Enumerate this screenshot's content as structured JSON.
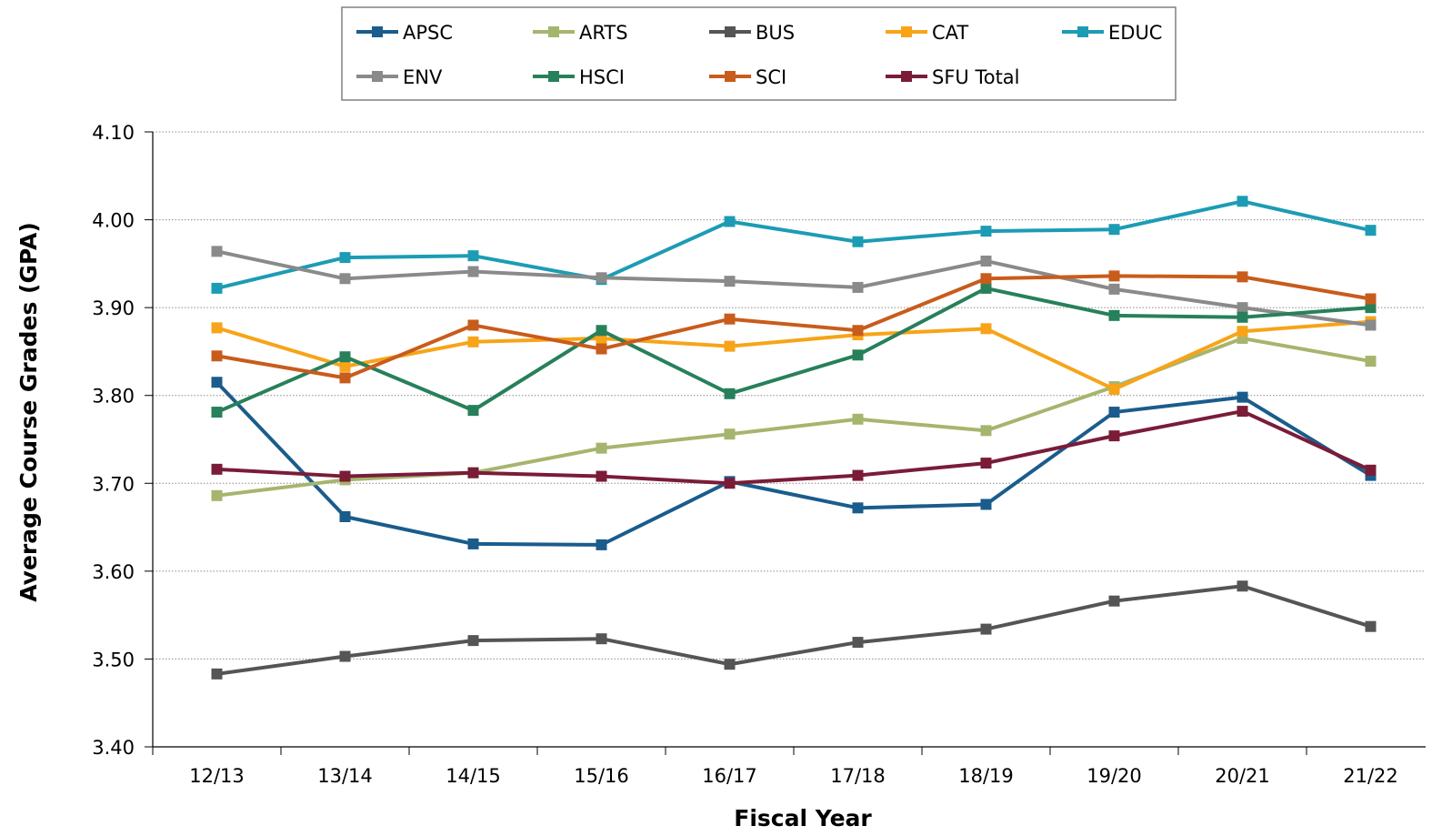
{
  "chart_data": {
    "type": "line",
    "title": "",
    "xlabel": "Fiscal Year",
    "ylabel": "Average Course Grades (GPA)",
    "ylim": [
      3.4,
      4.1
    ],
    "yticks": [
      "3.40",
      "3.50",
      "3.60",
      "3.70",
      "3.80",
      "3.90",
      "4.00",
      "4.10"
    ],
    "grid": "horizontal dotted",
    "legend_position": "top",
    "categories": [
      "12/13",
      "13/14",
      "14/15",
      "15/16",
      "16/17",
      "17/18",
      "18/19",
      "19/20",
      "20/21",
      "21/22"
    ],
    "series": [
      {
        "name": "APSC",
        "color": "#1a5c8c",
        "values": [
          3.815,
          3.662,
          3.631,
          3.63,
          3.702,
          3.672,
          3.676,
          3.781,
          3.798,
          3.709
        ]
      },
      {
        "name": "ARTS",
        "color": "#a6b56e",
        "values": [
          3.686,
          3.704,
          3.712,
          3.74,
          3.756,
          3.773,
          3.76,
          3.81,
          3.865,
          3.839
        ]
      },
      {
        "name": "BUS",
        "color": "#555555",
        "values": [
          3.483,
          3.503,
          3.521,
          3.523,
          3.494,
          3.519,
          3.534,
          3.566,
          3.583,
          3.537
        ]
      },
      {
        "name": "CAT",
        "color": "#f7a418",
        "values": [
          3.877,
          3.833,
          3.861,
          3.865,
          3.856,
          3.869,
          3.876,
          3.807,
          3.873,
          3.884
        ]
      },
      {
        "name": "EDUC",
        "color": "#1c9cb4",
        "values": [
          3.922,
          3.957,
          3.959,
          3.932,
          3.998,
          3.975,
          3.987,
          3.989,
          4.021,
          3.988
        ]
      },
      {
        "name": "ENV",
        "color": "#8a8a8a",
        "values": [
          3.964,
          3.933,
          3.941,
          3.934,
          3.93,
          3.923,
          3.953,
          3.921,
          3.9,
          3.88
        ]
      },
      {
        "name": "HSCI",
        "color": "#27805a",
        "values": [
          3.781,
          3.844,
          3.783,
          3.874,
          3.802,
          3.846,
          3.922,
          3.891,
          3.889,
          3.9
        ]
      },
      {
        "name": "SCI",
        "color": "#c85c1c",
        "values": [
          3.845,
          3.82,
          3.88,
          3.853,
          3.887,
          3.874,
          3.933,
          3.936,
          3.935,
          3.91
        ]
      },
      {
        "name": "SFU Total",
        "color": "#7a1c38",
        "values": [
          3.716,
          3.708,
          3.712,
          3.708,
          3.7,
          3.709,
          3.723,
          3.754,
          3.782,
          3.715
        ]
      }
    ]
  }
}
